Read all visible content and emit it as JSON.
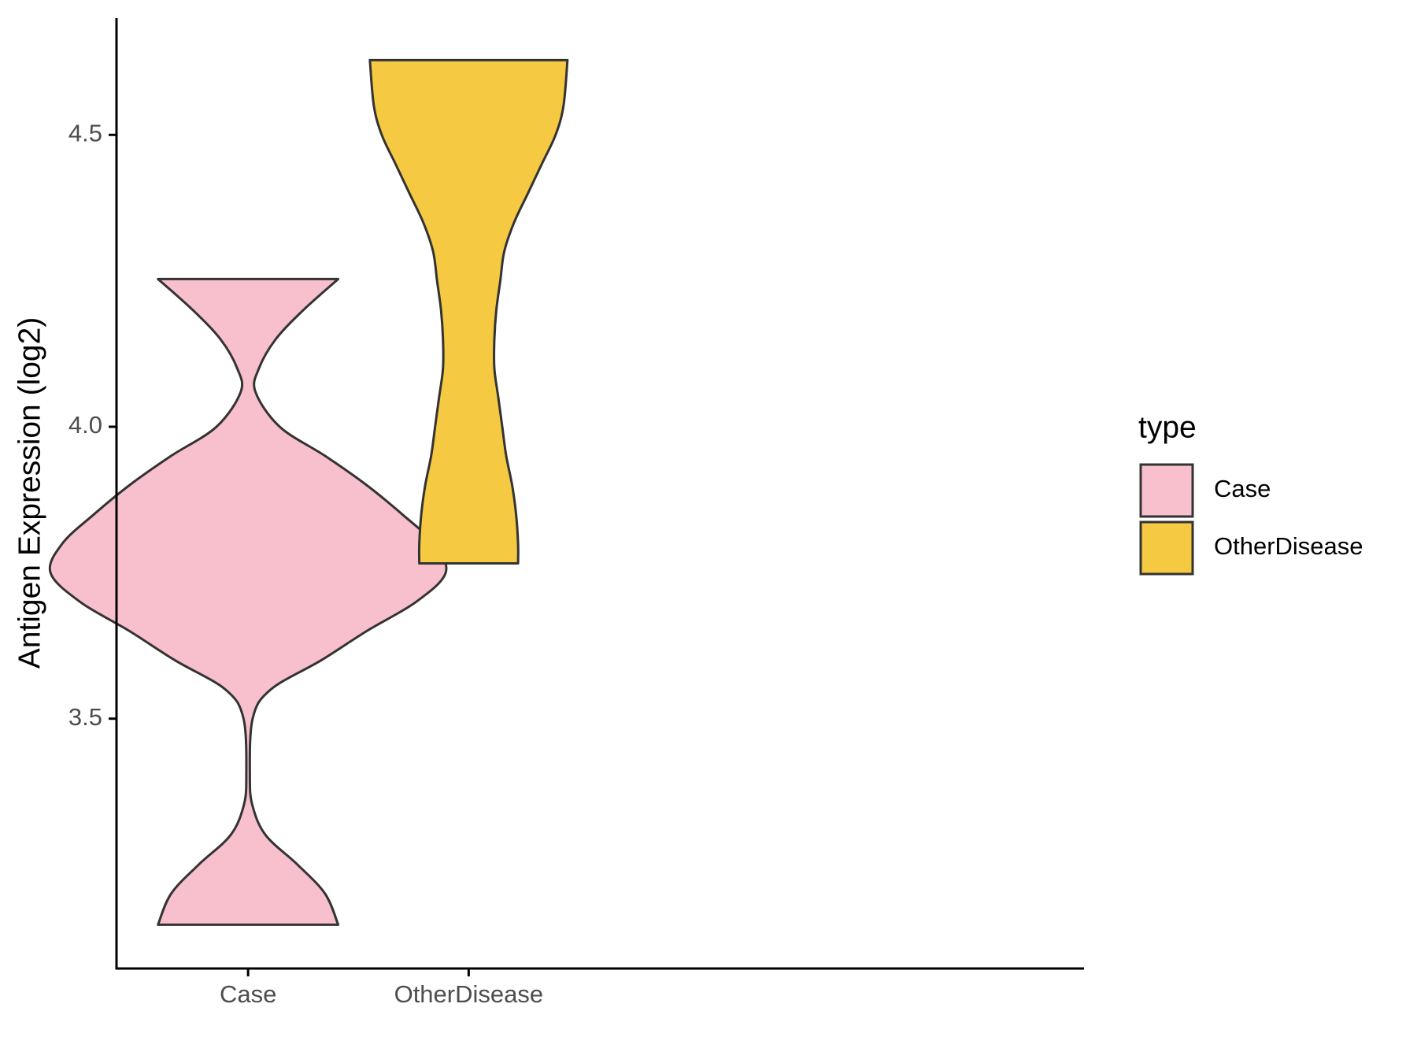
{
  "chart_data": {
    "type": "violin",
    "y_label": "Antigen Expression (log2)",
    "legend_title": "type",
    "categories": [
      "Case",
      "OtherDisease"
    ],
    "ylim": [
      3.072,
      4.7
    ],
    "yticks": [
      3.5,
      {
        "value": 4,
        "label": "4.0"
      },
      4.5
    ],
    "series": [
      {
        "name": "Case",
        "color": "#f7c0cc",
        "values": [
          4.253,
          4.2,
          4.15,
          4.1,
          4.06,
          4.0,
          3.95,
          3.9,
          3.85,
          3.8,
          3.75,
          3.7,
          3.65,
          3.6,
          3.55,
          3.5,
          3.4,
          3.35,
          3.3,
          3.25,
          3.2,
          3.147
        ],
        "widths": [
          0.456,
          0.28,
          0.14,
          0.055,
          0.037,
          0.16,
          0.39,
          0.6,
          0.78,
          0.94,
          1.0,
          0.85,
          0.6,
          0.37,
          0.115,
          0.023,
          0.009,
          0.023,
          0.09,
          0.25,
          0.39,
          0.456
        ]
      },
      {
        "name": "OtherDisease",
        "color": "#f5c942",
        "values": [
          4.628,
          4.55,
          4.5,
          4.45,
          4.4,
          4.35,
          4.3,
          4.25,
          4.2,
          4.15,
          4.1,
          4.05,
          4.0,
          3.95,
          3.9,
          3.85,
          3.8,
          3.766
        ],
        "widths": [
          0.5,
          0.48,
          0.44,
          0.37,
          0.3,
          0.23,
          0.18,
          0.16,
          0.14,
          0.13,
          0.13,
          0.15,
          0.17,
          0.19,
          0.22,
          0.24,
          0.25,
          0.25
        ]
      }
    ]
  }
}
